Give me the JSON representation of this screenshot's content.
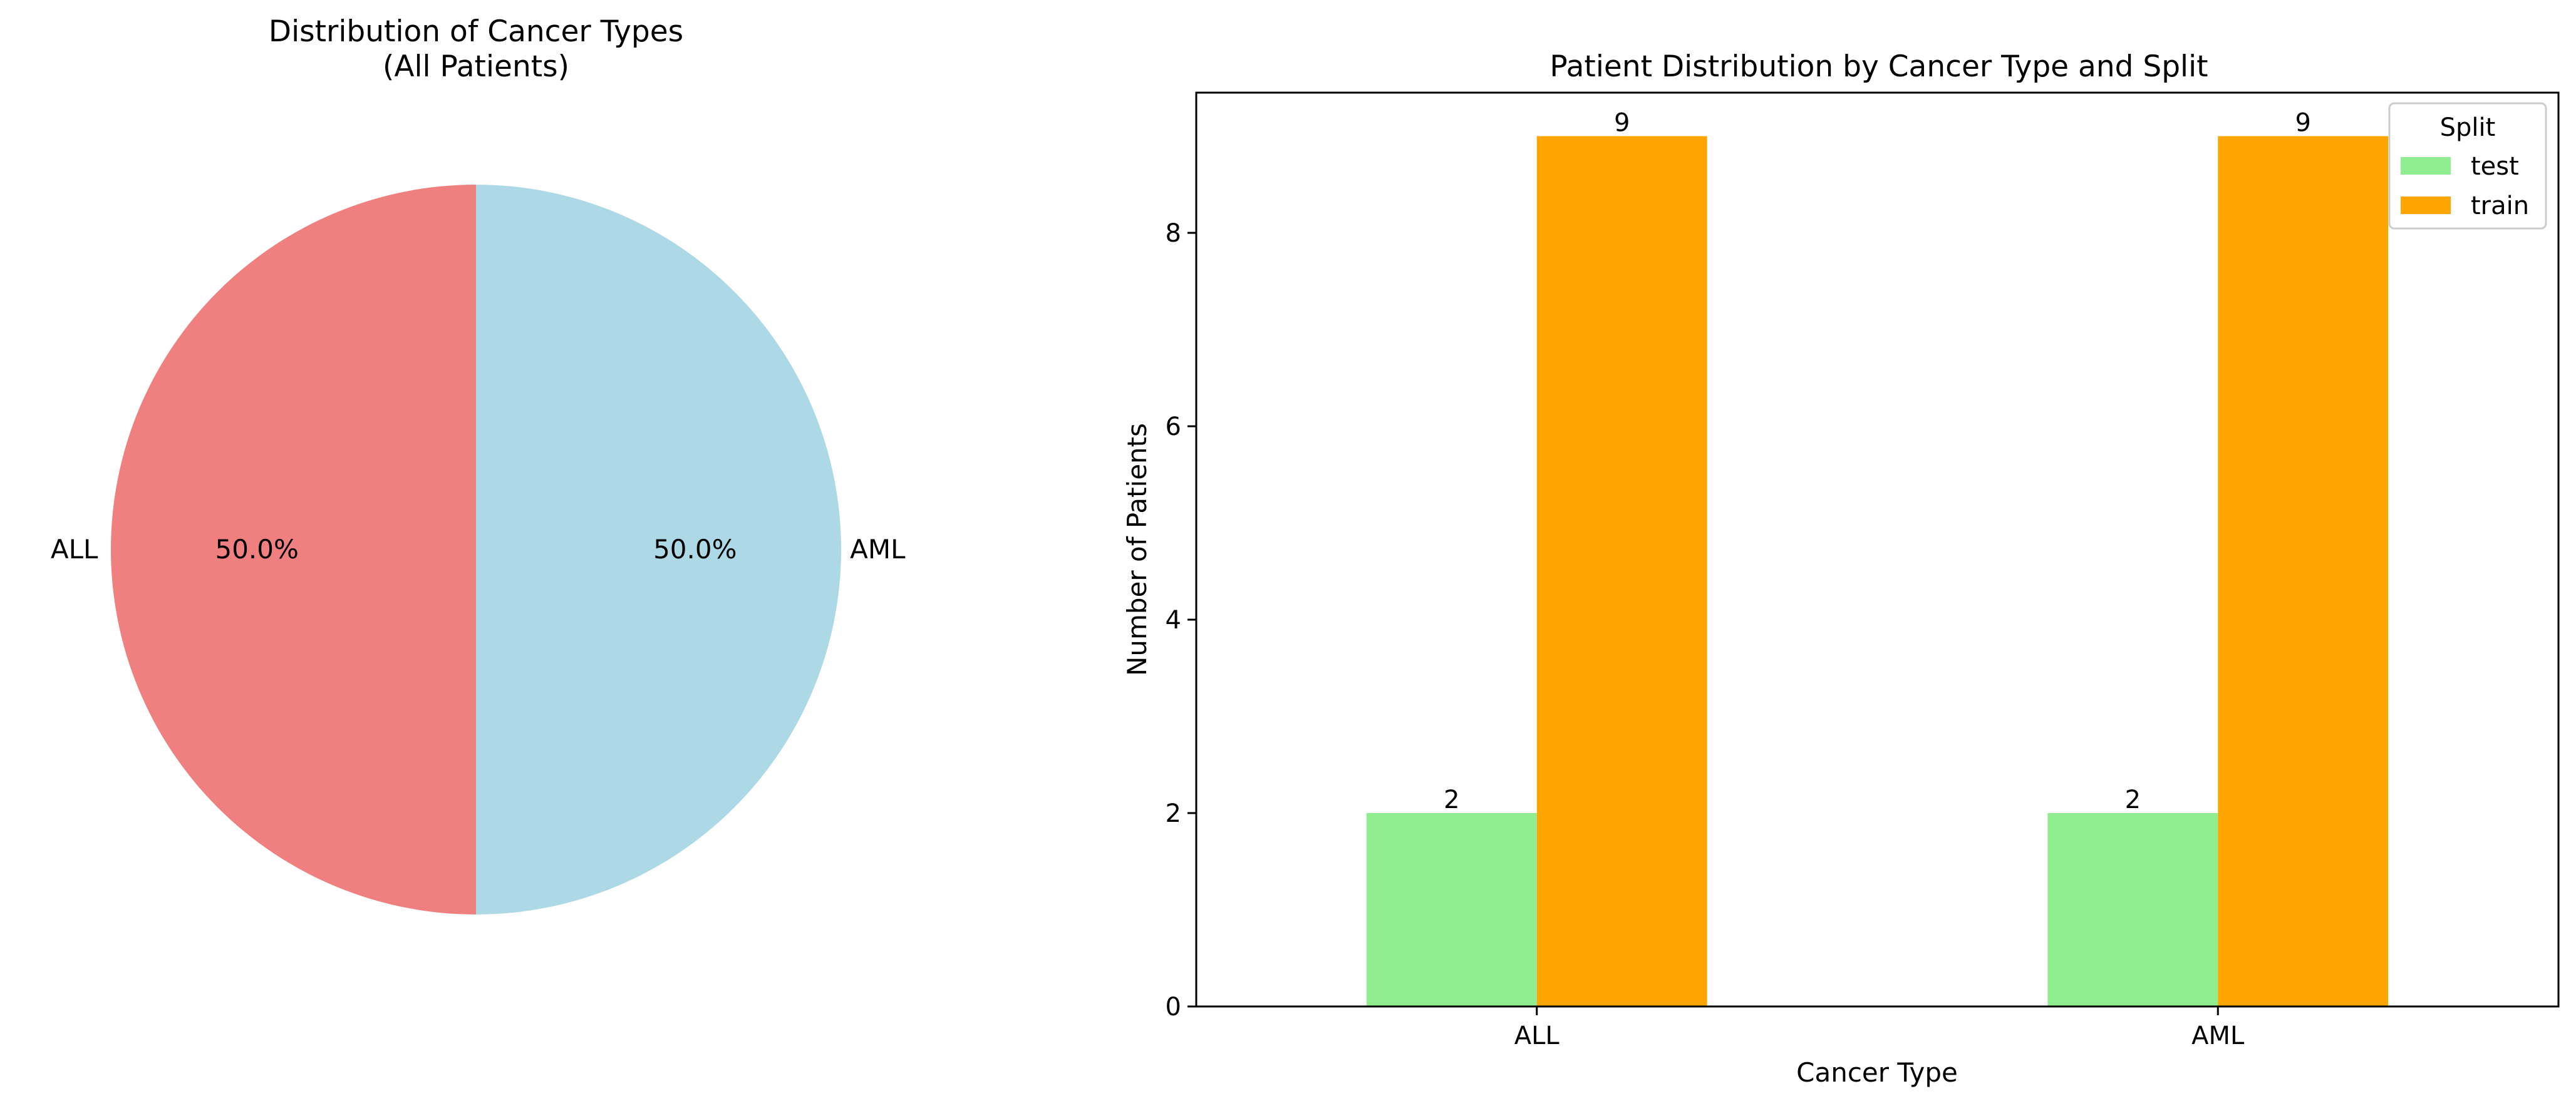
{
  "chart_data": [
    {
      "type": "pie",
      "title": [
        "Distribution of Cancer Types",
        "(All Patients)"
      ],
      "slices": [
        {
          "label": "ALL",
          "value": 50.0,
          "pct_label": "50.0%",
          "color": "#f08080"
        },
        {
          "label": "AML",
          "value": 50.0,
          "pct_label": "50.0%",
          "color": "#add8e6"
        }
      ],
      "start_angle_deg": 90
    },
    {
      "type": "bar",
      "title": "Patient Distribution by Cancer Type and Split",
      "xlabel": "Cancer Type",
      "ylabel": "Number of Patients",
      "categories": [
        "ALL",
        "AML"
      ],
      "series": [
        {
          "name": "test",
          "values": [
            2,
            2
          ],
          "color": "#90ee90"
        },
        {
          "name": "train",
          "values": [
            9,
            9
          ],
          "color": "#ffa500"
        }
      ],
      "ylim": [
        0,
        9.45
      ],
      "yticks": [
        0,
        2,
        4,
        6,
        8
      ],
      "grid": false,
      "legend": {
        "title": "Split",
        "placement": "top-right"
      }
    }
  ]
}
